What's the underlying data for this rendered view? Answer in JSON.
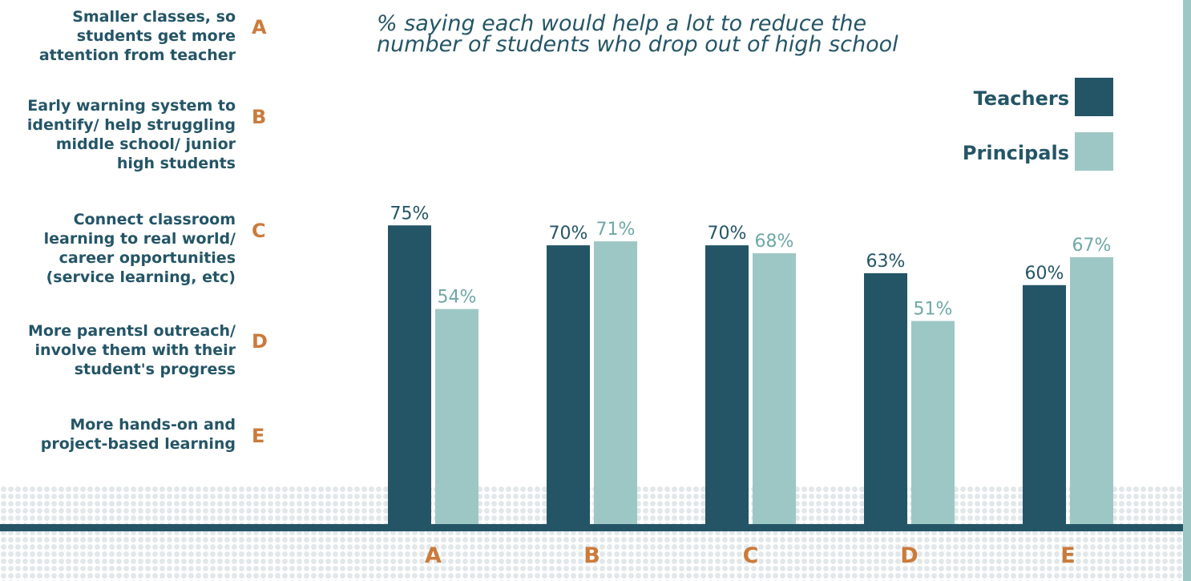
{
  "subtitle": [
    "% saying each would help a lot to reduce the",
    "number of students who drop out of high school"
  ],
  "categories_legend": [
    {
      "letter": "A",
      "lines": [
        "Smaller classes, so",
        "students get more",
        "attention from teacher"
      ]
    },
    {
      "letter": "B",
      "lines": [
        "Early warning system to",
        "identify/ help struggling",
        "middle school/ junior",
        "high students"
      ]
    },
    {
      "letter": "C",
      "lines": [
        "Connect classroom",
        "learning to real world/",
        "career opportunities",
        "(service learning, etc)"
      ]
    },
    {
      "letter": "D",
      "lines": [
        "More parentsl outreach/",
        "involve them with their",
        "student's progress"
      ]
    },
    {
      "letter": "E",
      "lines": [
        "More hands-on and",
        "project-based learning"
      ]
    }
  ],
  "legend": [
    {
      "label": "Teachers",
      "color": "#245567"
    },
    {
      "label": "Principals",
      "color": "#9dc7c5"
    }
  ],
  "chart_data": {
    "type": "bar",
    "categories": [
      "A",
      "B",
      "C",
      "D",
      "E"
    ],
    "series": [
      {
        "name": "Teachers",
        "values": [
          75,
          70,
          70,
          63,
          60
        ],
        "labels": [
          "75%",
          "70%",
          "70%",
          "63%",
          "60%"
        ],
        "color": "#245567"
      },
      {
        "name": "Principals",
        "values": [
          54,
          71,
          68,
          51,
          67
        ],
        "labels": [
          "54%",
          "71%",
          "68%",
          "51%",
          "67%"
        ],
        "color": "#9dc7c5"
      }
    ],
    "category_label_color": "#cc7a3a",
    "legend_position": "top-right",
    "grid": false
  }
}
